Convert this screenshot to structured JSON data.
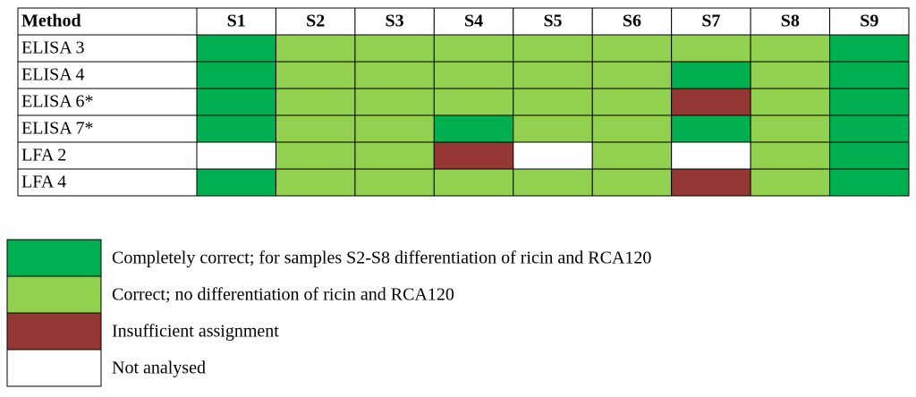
{
  "table": {
    "header": [
      "Method",
      "S1",
      "S2",
      "S3",
      "S4",
      "S5",
      "S6",
      "S7",
      "S8",
      "S9"
    ],
    "rows": [
      {
        "label": "ELISA 3",
        "cells": [
          "#00b050",
          "#92d050",
          "#92d050",
          "#92d050",
          "#92d050",
          "#92d050",
          "#92d050",
          "#92d050",
          "#00b050"
        ]
      },
      {
        "label": "ELISA 4",
        "cells": [
          "#00b050",
          "#92d050",
          "#92d050",
          "#92d050",
          "#92d050",
          "#92d050",
          "#00b050",
          "#92d050",
          "#00b050"
        ]
      },
      {
        "label": "ELISA 6*",
        "cells": [
          "#00b050",
          "#92d050",
          "#92d050",
          "#92d050",
          "#92d050",
          "#92d050",
          "#953735",
          "#92d050",
          "#00b050"
        ]
      },
      {
        "label": "ELISA 7*",
        "cells": [
          "#00b050",
          "#92d050",
          "#92d050",
          "#00b050",
          "#92d050",
          "#92d050",
          "#00b050",
          "#92d050",
          "#00b050"
        ]
      },
      {
        "label": "LFA 2",
        "cells": [
          "#ffffff",
          "#92d050",
          "#92d050",
          "#953735",
          "#ffffff",
          "#92d050",
          "#ffffff",
          "#92d050",
          "#00b050"
        ]
      },
      {
        "label": "LFA 4",
        "cells": [
          "#00b050",
          "#92d050",
          "#92d050",
          "#92d050",
          "#92d050",
          "#92d050",
          "#953735",
          "#92d050",
          "#00b050"
        ]
      }
    ]
  },
  "legend": [
    {
      "color": "#00b050",
      "label": "Completely correct; for samples S2-S8 differentiation of ricin and RCA120"
    },
    {
      "color": "#92d050",
      "label": "Correct; no differentiation of ricin and RCA120"
    },
    {
      "color": "#953735",
      "label": "Insufficient assignment"
    },
    {
      "color": "#ffffff",
      "label": "Not analysed"
    }
  ]
}
